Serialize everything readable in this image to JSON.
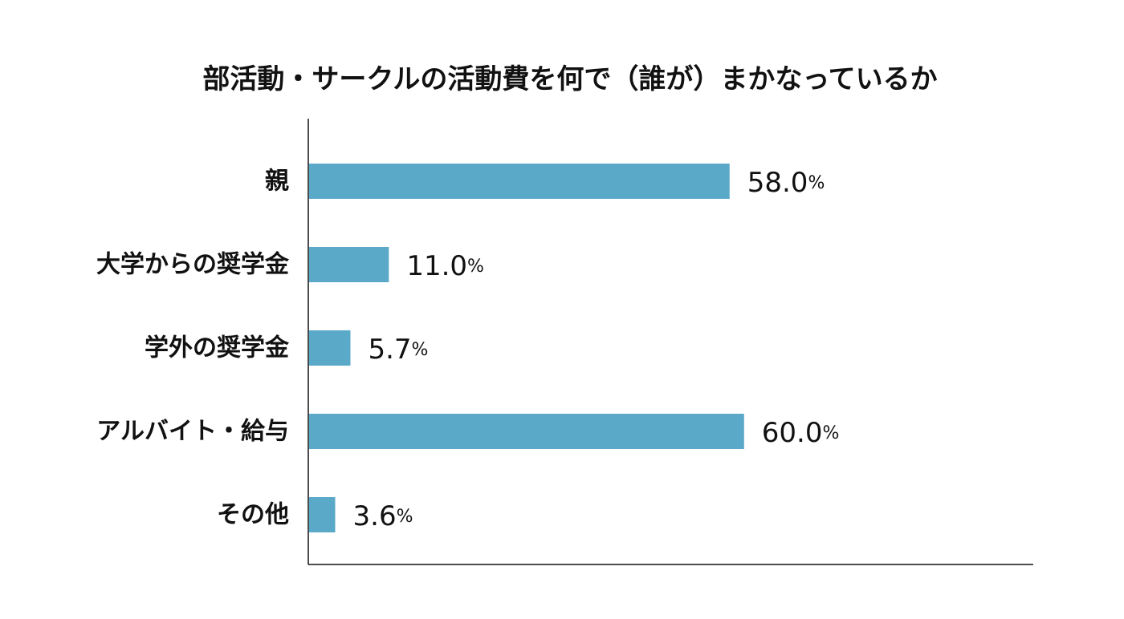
{
  "chart_data": {
    "type": "bar",
    "orientation": "horizontal",
    "title": "部活動・サークルの活動費を何で（誰が）まかなっているか",
    "categories": [
      "親",
      "大学からの奨学金",
      "学外の奨学金",
      "アルバイト・給与",
      "その他"
    ],
    "values": [
      58.0,
      11.0,
      5.7,
      60.0,
      3.6
    ],
    "value_labels": [
      "58.0",
      "11.0",
      "5.7",
      "60.0",
      "3.6"
    ],
    "unit": "%",
    "xlim": [
      0,
      100
    ],
    "grid": false,
    "legend": "none",
    "bar_color": "#5aa9c8"
  }
}
